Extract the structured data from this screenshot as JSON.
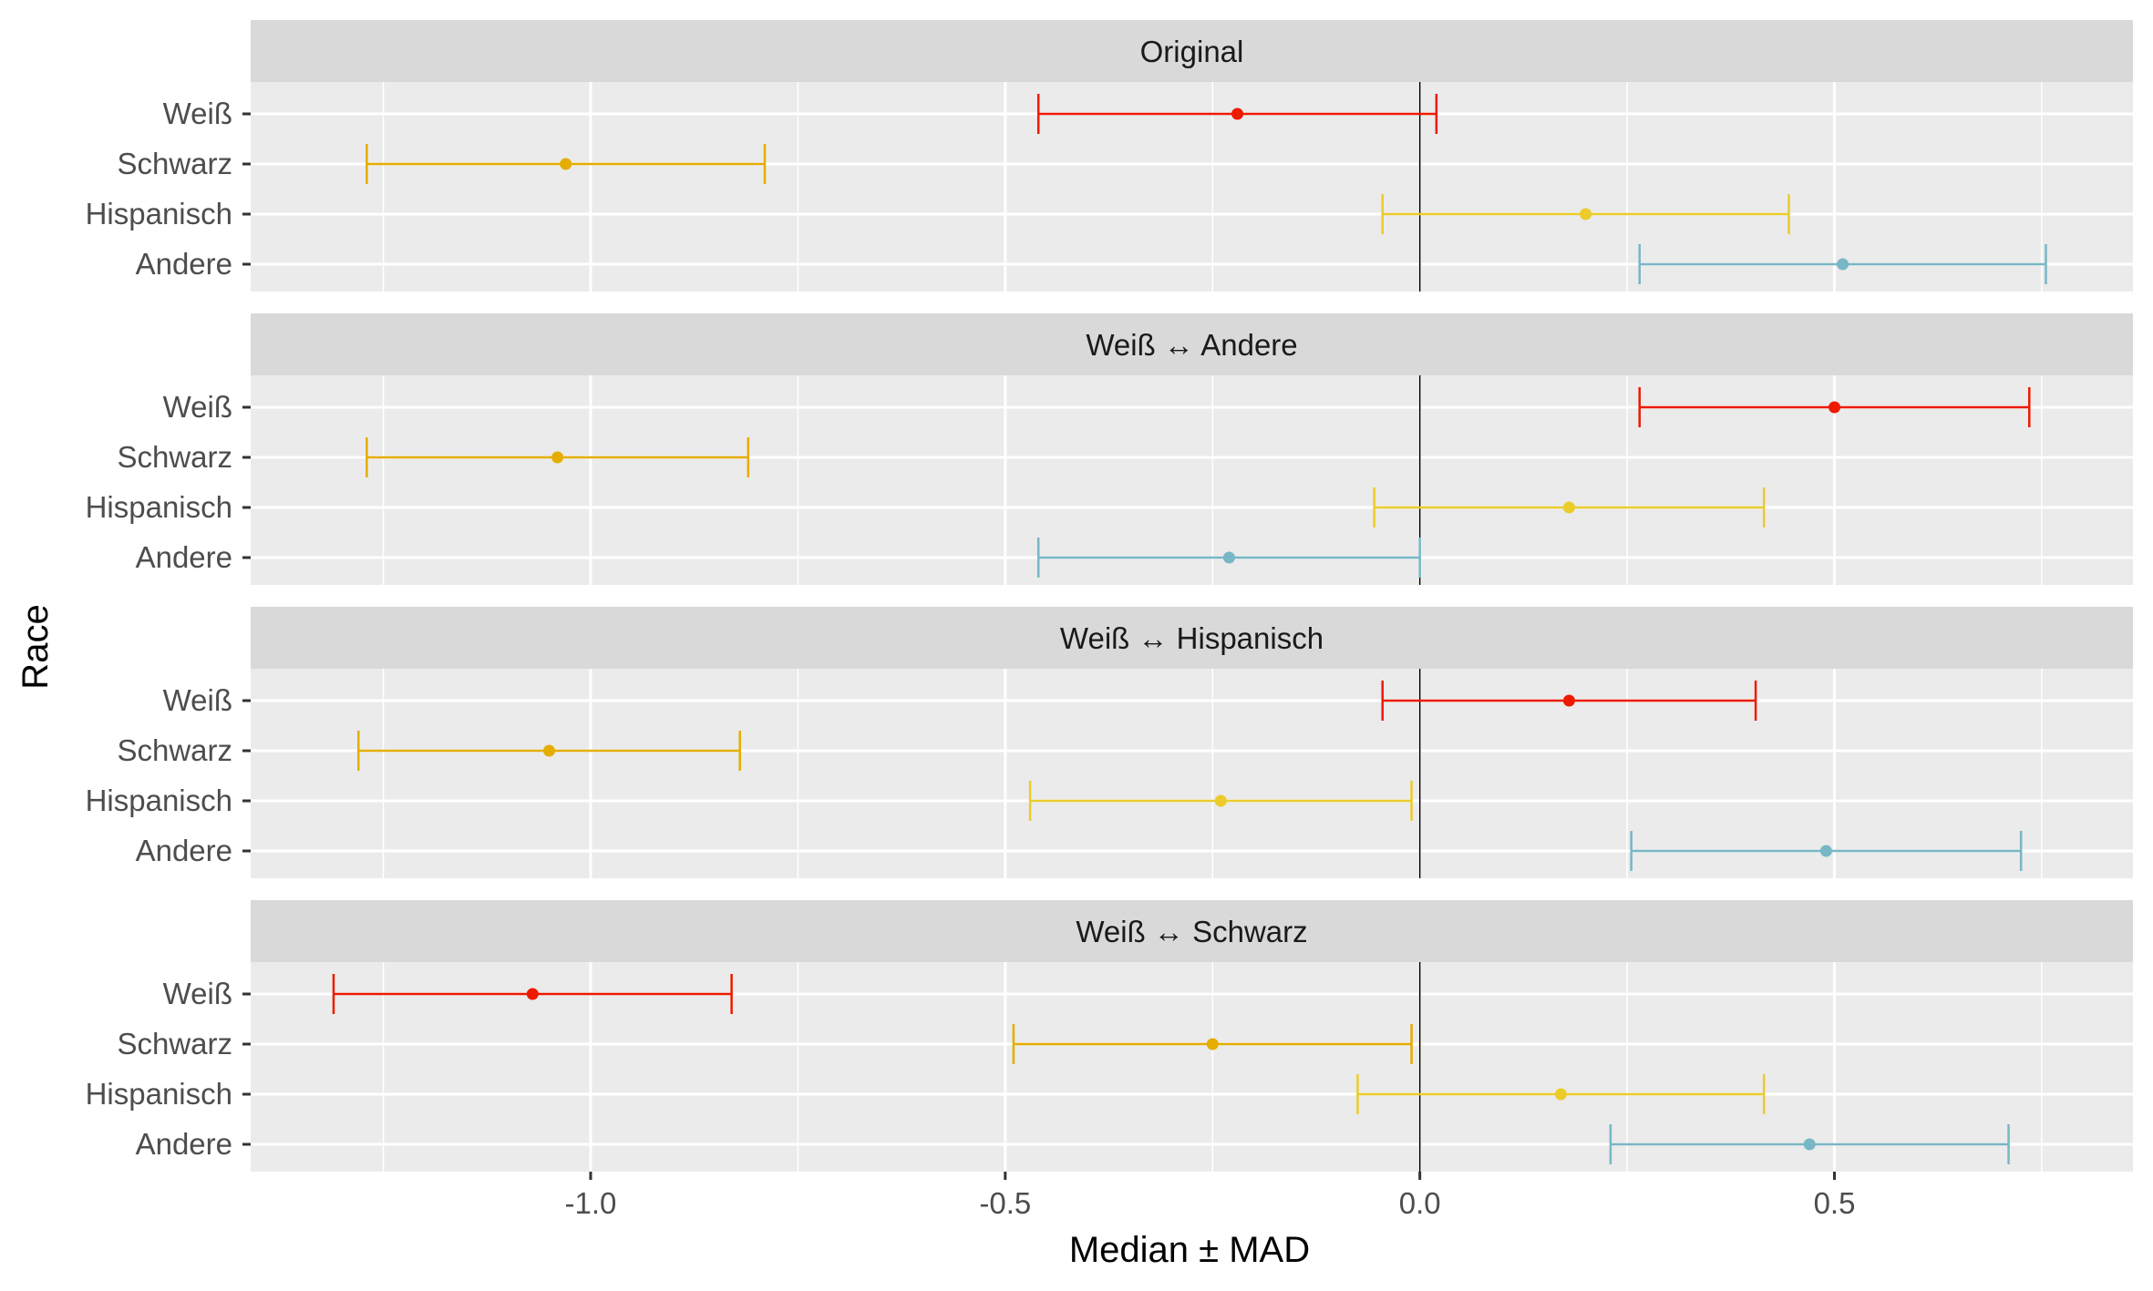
{
  "chart_data": {
    "type": "errorbar",
    "xlabel": "Median ± MAD",
    "ylabel": "Race",
    "xlim": [
      -1.41,
      0.86
    ],
    "x_ticks": [
      -1.0,
      -0.5,
      0.0,
      0.5
    ],
    "x_tick_labels": [
      "-1.0",
      "-0.5",
      "0.0",
      "0.5"
    ],
    "categories": [
      "Weiß",
      "Schwarz",
      "Hispanisch",
      "Andere"
    ],
    "colors": {
      "Weiß": "#ee1a00",
      "Schwarz": "#e5ad00",
      "Hispanisch": "#ebcc2a",
      "Andere": "#78b7c5"
    },
    "reference_line": 0.0,
    "grid": true,
    "panels": [
      {
        "title": "Original",
        "points": [
          {
            "category": "Weiß",
            "median": -0.22,
            "low": -0.46,
            "high": 0.02
          },
          {
            "category": "Schwarz",
            "median": -1.03,
            "low": -1.27,
            "high": -0.79
          },
          {
            "category": "Hispanisch",
            "median": 0.2,
            "low": -0.045,
            "high": 0.445
          },
          {
            "category": "Andere",
            "median": 0.51,
            "low": 0.265,
            "high": 0.755
          }
        ]
      },
      {
        "title": "Weiß ↔ Andere",
        "points": [
          {
            "category": "Weiß",
            "median": 0.5,
            "low": 0.265,
            "high": 0.735
          },
          {
            "category": "Schwarz",
            "median": -1.04,
            "low": -1.27,
            "high": -0.81
          },
          {
            "category": "Hispanisch",
            "median": 0.18,
            "low": -0.055,
            "high": 0.415
          },
          {
            "category": "Andere",
            "median": -0.23,
            "low": -0.46,
            "high": 0.0
          }
        ]
      },
      {
        "title": "Weiß ↔ Hispanisch",
        "points": [
          {
            "category": "Weiß",
            "median": 0.18,
            "low": -0.045,
            "high": 0.405
          },
          {
            "category": "Schwarz",
            "median": -1.05,
            "low": -1.28,
            "high": -0.82
          },
          {
            "category": "Hispanisch",
            "median": -0.24,
            "low": -0.47,
            "high": -0.01
          },
          {
            "category": "Andere",
            "median": 0.49,
            "low": 0.255,
            "high": 0.725
          }
        ]
      },
      {
        "title": "Weiß ↔ Schwarz",
        "points": [
          {
            "category": "Weiß",
            "median": -1.07,
            "low": -1.31,
            "high": -0.83
          },
          {
            "category": "Schwarz",
            "median": -0.25,
            "low": -0.49,
            "high": -0.01
          },
          {
            "category": "Hispanisch",
            "median": 0.17,
            "low": -0.075,
            "high": 0.415
          },
          {
            "category": "Andere",
            "median": 0.47,
            "low": 0.23,
            "high": 0.71
          }
        ]
      }
    ]
  }
}
